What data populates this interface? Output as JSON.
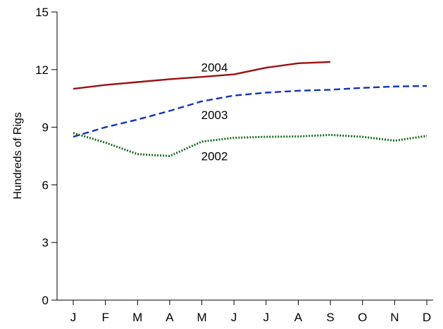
{
  "chart_data": {
    "type": "line",
    "title": "",
    "xlabel": "",
    "ylabel": "Hundreds of Rigs",
    "categories": [
      "J",
      "F",
      "M",
      "A",
      "M",
      "J",
      "J",
      "A",
      "S",
      "O",
      "N",
      "D"
    ],
    "yticks": [
      "0",
      "3",
      "6",
      "9",
      "12",
      "15"
    ],
    "ylim": [
      0,
      15
    ],
    "grid": false,
    "legend": "none",
    "series": [
      {
        "name": "2004",
        "color": "#9b1111",
        "style": "solid",
        "values": [
          11.0,
          11.2,
          11.35,
          11.5,
          11.62,
          11.75,
          12.1,
          12.33,
          12.4,
          null,
          null,
          null
        ]
      },
      {
        "name": "2003",
        "color": "#1133bb",
        "style": "dashed",
        "values": [
          8.5,
          9.0,
          9.4,
          9.85,
          10.35,
          10.65,
          10.8,
          10.9,
          10.95,
          11.05,
          11.12,
          11.15
        ]
      },
      {
        "name": "2002",
        "color": "#1a6b1a",
        "style": "dotted",
        "values": [
          8.7,
          8.2,
          7.6,
          7.5,
          8.25,
          8.45,
          8.5,
          8.52,
          8.6,
          8.5,
          8.3,
          8.55
        ]
      }
    ]
  }
}
